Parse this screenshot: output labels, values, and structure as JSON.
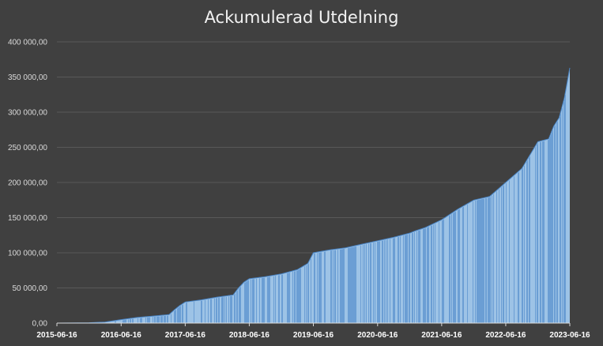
{
  "chart_data": {
    "type": "area",
    "title": "Ackumulerad Utdelning",
    "xlabel": "",
    "ylabel": "",
    "ylim": [
      0,
      400000
    ],
    "yticks": [
      "0,00",
      "50 000,00",
      "100 000,00",
      "150 000,00",
      "200 000,00",
      "250 000,00",
      "300 000,00",
      "350 000,00",
      "400 000,00"
    ],
    "xticks": [
      "2015-06-16",
      "2016-06-16",
      "2017-06-16",
      "2018-06-16",
      "2019-06-16",
      "2020-06-16",
      "2021-06-16",
      "2022-06-16",
      "2023-06-16"
    ],
    "xlim": [
      "2015-06-16",
      "2023-06-16"
    ],
    "grid": true,
    "colors": {
      "fill": "#9dc3e6",
      "stroke": "#4a86c8",
      "bar_line": "#3f7dc4",
      "grid": "#595959",
      "axis": "#d9d9d9"
    },
    "series": [
      {
        "x": [
          "2015-06-16",
          "2015-12-16",
          "2016-03-16",
          "2016-06-16",
          "2016-09-16",
          "2016-12-16",
          "2017-03-16",
          "2017-04-16",
          "2017-05-16",
          "2017-06-16",
          "2017-09-16",
          "2017-12-16",
          "2018-03-16",
          "2018-04-16",
          "2018-05-16",
          "2018-06-16",
          "2018-09-16",
          "2018-12-16",
          "2019-02-16",
          "2019-03-16",
          "2019-05-16",
          "2019-06-16",
          "2019-09-16",
          "2019-12-16",
          "2020-03-16",
          "2020-06-16",
          "2020-09-16",
          "2020-12-16",
          "2021-01-16",
          "2021-03-16",
          "2021-06-16",
          "2021-09-16",
          "2021-12-16",
          "2022-03-16",
          "2022-06-16",
          "2022-09-16",
          "2022-12-16",
          "2023-02-16",
          "2023-03-16",
          "2023-04-16",
          "2023-05-16",
          "2023-06-16"
        ],
        "y": [
          0,
          500,
          1500,
          5000,
          8000,
          10000,
          12000,
          19000,
          25000,
          30000,
          33000,
          37000,
          40000,
          50000,
          58000,
          63000,
          66000,
          70000,
          74000,
          76000,
          85000,
          100000,
          104000,
          107000,
          112000,
          117000,
          122000,
          128000,
          131000,
          136000,
          147000,
          162000,
          175000,
          180000,
          200000,
          220000,
          258000,
          262000,
          280000,
          292000,
          320000,
          363000
        ]
      }
    ]
  }
}
